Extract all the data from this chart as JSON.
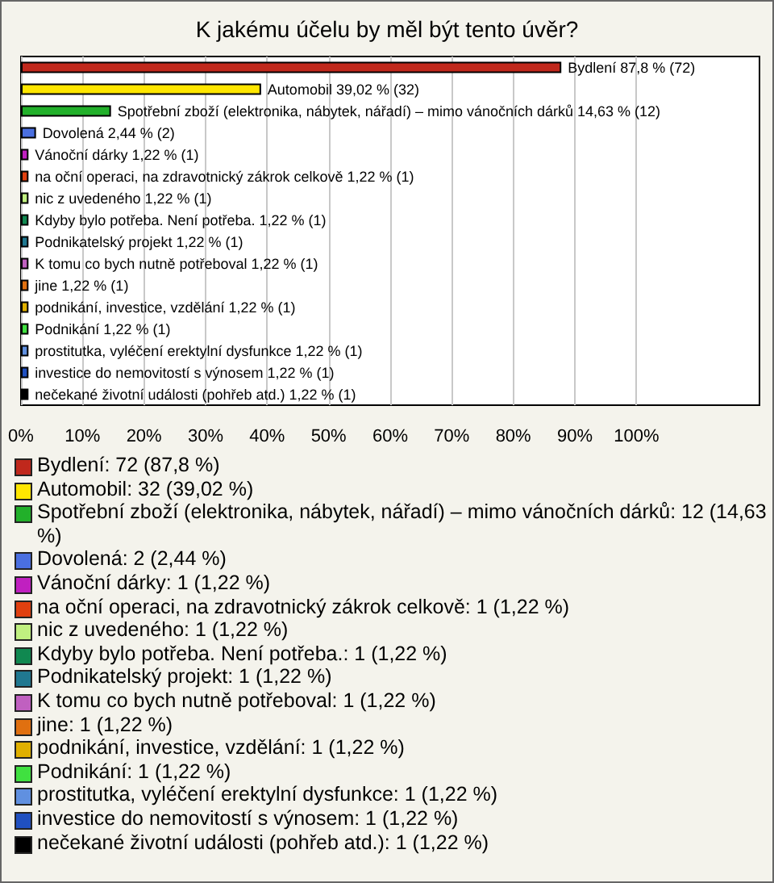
{
  "chart_data": {
    "type": "bar",
    "orientation": "horizontal",
    "title": "K jakému účelu by měl být tento úvěr?",
    "categories": [
      "Bydlení",
      "Automobil",
      "Spotřební zboží (elektronika, nábytek, nářadí) – mimo vánočních dárků",
      "Dovolená",
      "Vánoční dárky",
      "na oční operaci, na zdravotnický zákrok celkově",
      "nic z uvedeného",
      "Kdyby bylo potřeba. Není potřeba.",
      "Podnikatelský projekt",
      "K tomu co bych nutně potřeboval",
      "jine",
      "podnikání, investice, vzdělání",
      "Podnikání",
      "prostitutka, vyléčení erektylní dysfunkce",
      "investice do nemovitostí s výnosem",
      "nečekané životní události (pohřeb atd.)"
    ],
    "values": [
      87.8,
      39.02,
      14.63,
      2.44,
      1.22,
      1.22,
      1.22,
      1.22,
      1.22,
      1.22,
      1.22,
      1.22,
      1.22,
      1.22,
      1.22,
      1.22
    ],
    "value_labels": [
      "87,8 % (72)",
      "39,02 % (32)",
      "14,63 % (12)",
      "2,44 % (2)",
      "1,22 % (1)",
      "1,22 % (1)",
      "1,22 % (1)",
      "1,22 % (1)",
      "1,22 % (1)",
      "1,22 % (1)",
      "1,22 % (1)",
      "1,22 % (1)",
      "1,22 % (1)",
      "1,22 % (1)",
      "1,22 % (1)",
      "1,22 % (1)"
    ],
    "colors": [
      "#c0281c",
      "#ffe600",
      "#22b02a",
      "#4a6fe0",
      "#c020c0",
      "#e04010",
      "#c0f080",
      "#108850",
      "#207890",
      "#c060c0",
      "#e07010",
      "#e0b000",
      "#40e040",
      "#6090e0",
      "#2050c0",
      "#000000"
    ],
    "xlim": [
      0,
      120
    ],
    "xticks": [
      {
        "value": 0,
        "label": "0%"
      },
      {
        "value": 10,
        "label": "10%"
      },
      {
        "value": 20,
        "label": "20%"
      },
      {
        "value": 30,
        "label": "30%"
      },
      {
        "value": 40,
        "label": "40%"
      },
      {
        "value": 50,
        "label": "50%"
      },
      {
        "value": 60,
        "label": "60%"
      },
      {
        "value": 70,
        "label": "70%"
      },
      {
        "value": 80,
        "label": "80%"
      },
      {
        "value": 90,
        "label": "90%"
      },
      {
        "value": 100,
        "label": "100%"
      }
    ],
    "grid": "x",
    "annotations": [
      "Bydlení: 72 (87,8 %)",
      "Automobil: 32 (39,02 %)",
      "Spotřební zboží (elektronika, nábytek, nářadí) – mimo vánočních dárků: 12 (14,63 %)",
      "Dovolená: 2 (2,44 %)",
      "Vánoční dárky: 1 (1,22 %)",
      "na oční operaci, na zdravotnický zákrok celkově: 1 (1,22 %)",
      "nic z uvedeného: 1 (1,22 %)",
      "Kdyby bylo potřeba. Není potřeba.: 1 (1,22 %)",
      "Podnikatelský projekt: 1 (1,22 %)",
      "K tomu co bych nutně potřeboval: 1 (1,22 %)",
      "jine: 1 (1,22 %)",
      "podnikání, investice, vzdělání: 1 (1,22 %)",
      "Podnikání: 1 (1,22 %)",
      "prostitutka, vyléčení erektylní dysfunkce: 1 (1,22 %)",
      "investice do nemovitostí s výnosem: 1 (1,22 %)",
      "nečekané životní události (pohřeb atd.): 1 (1,22 %)"
    ]
  }
}
